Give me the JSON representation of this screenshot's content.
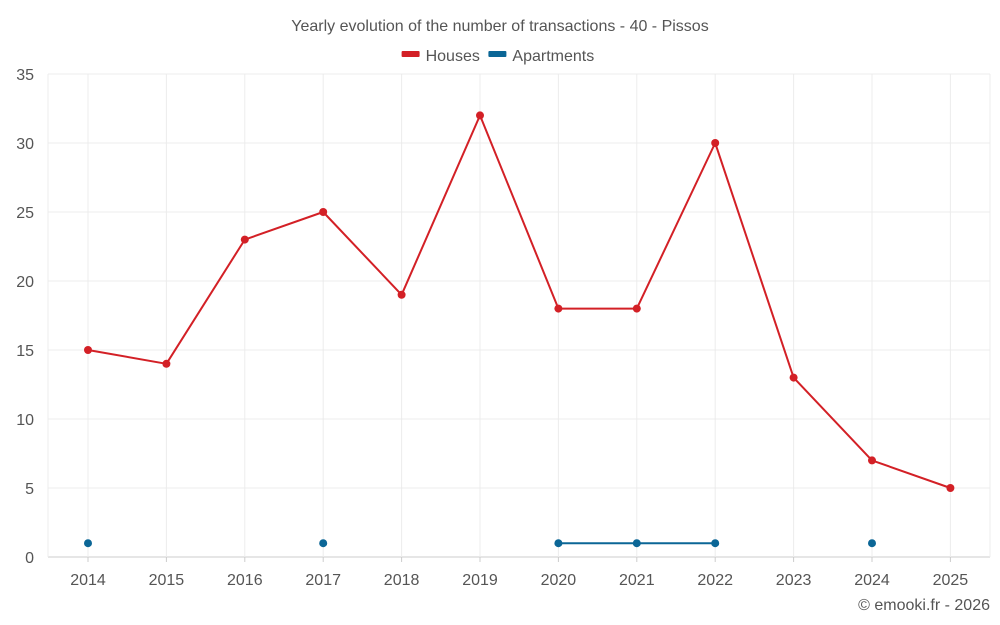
{
  "chart_data": {
    "type": "line",
    "title": "Yearly evolution of the number of transactions - 40 - Pissos",
    "categories": [
      "2014",
      "2015",
      "2016",
      "2017",
      "2018",
      "2019",
      "2020",
      "2021",
      "2022",
      "2023",
      "2024",
      "2025"
    ],
    "ylim": [
      0,
      35
    ],
    "yticks": [
      0,
      5,
      10,
      15,
      20,
      25,
      30,
      35
    ],
    "grid": true,
    "legend_position": "top-center",
    "series": [
      {
        "name": "Houses",
        "color": "#d32026",
        "values": [
          15,
          14,
          23,
          25,
          19,
          32,
          18,
          18,
          30,
          13,
          7,
          5
        ]
      },
      {
        "name": "Apartments",
        "color": "#0b6696",
        "values": [
          1,
          null,
          null,
          1,
          null,
          null,
          1,
          1,
          1,
          null,
          1,
          null
        ]
      }
    ],
    "credit": "© emooki.fr - 2026"
  }
}
